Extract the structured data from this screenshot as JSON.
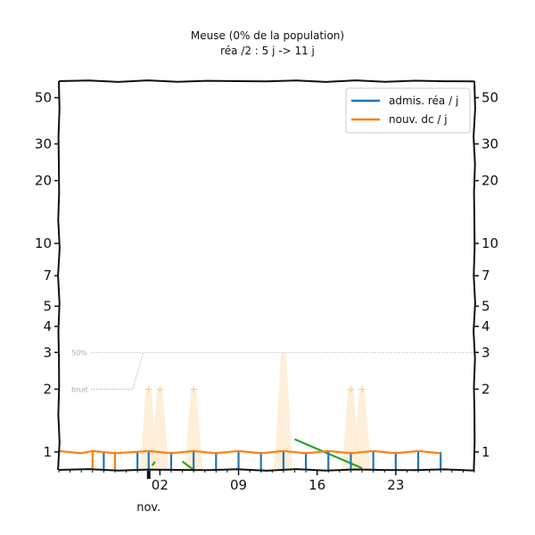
{
  "chart_data": {
    "type": "line",
    "title": "Meuse (0% de la population)",
    "subtitle": "réa /2 : 5 j -> 11 j",
    "y_scale": "log",
    "ylim": [
      0.82,
      60
    ],
    "y_ticks": [
      1,
      2,
      3,
      4,
      5,
      7,
      10,
      20,
      30,
      50
    ],
    "x_range": [
      "2020-10-24",
      "2020-11-30"
    ],
    "x_ticks": [
      {
        "date": "2020-11-02",
        "label": "02"
      },
      {
        "date": "2020-11-09",
        "label": "09"
      },
      {
        "date": "2020-11-16",
        "label": "16"
      },
      {
        "date": "2020-11-23",
        "label": "23"
      }
    ],
    "month_label": "nov.",
    "legend_position": "top-right",
    "colors": {
      "rea": "#1f77b4",
      "dc": "#ff7f0e",
      "trend": "#2ca02c",
      "noise_band": "#fdebd0",
      "reference": "#aaaaaa"
    },
    "reference_lines": [
      {
        "label": "50%",
        "value": 3
      },
      {
        "label": "bruit",
        "value": 2
      }
    ],
    "series": [
      {
        "name": "admis. réa / j",
        "key": "rea",
        "points": [
          [
            "2020-10-24",
            1
          ],
          [
            "2020-10-28",
            1
          ],
          [
            "2020-10-31",
            1
          ],
          [
            "2020-11-01",
            1
          ],
          [
            "2020-11-03",
            1
          ],
          [
            "2020-11-05",
            1
          ],
          [
            "2020-11-07",
            1
          ],
          [
            "2020-11-09",
            1
          ],
          [
            "2020-11-11",
            1
          ],
          [
            "2020-11-13",
            1
          ],
          [
            "2020-11-15",
            1
          ],
          [
            "2020-11-17",
            1
          ],
          [
            "2020-11-19",
            1
          ],
          [
            "2020-11-21",
            1
          ],
          [
            "2020-11-23",
            1
          ],
          [
            "2020-11-25",
            1
          ],
          [
            "2020-11-27",
            1
          ]
        ]
      },
      {
        "name": "nouv. dc / j",
        "key": "dc",
        "points": [
          [
            "2020-10-24",
            1
          ],
          [
            "2020-10-26",
            1
          ],
          [
            "2020-10-27",
            1
          ],
          [
            "2020-10-29",
            1
          ],
          [
            "2020-11-01",
            1
          ],
          [
            "2020-11-03",
            1
          ],
          [
            "2020-11-05",
            1
          ],
          [
            "2020-11-07",
            1
          ],
          [
            "2020-11-09",
            1
          ],
          [
            "2020-11-11",
            1
          ],
          [
            "2020-11-13",
            1
          ],
          [
            "2020-11-15",
            1
          ],
          [
            "2020-11-17",
            1
          ],
          [
            "2020-11-19",
            1
          ],
          [
            "2020-11-21",
            1
          ],
          [
            "2020-11-23",
            1
          ],
          [
            "2020-11-25",
            1
          ],
          [
            "2020-11-27",
            1
          ]
        ]
      }
    ]
  }
}
